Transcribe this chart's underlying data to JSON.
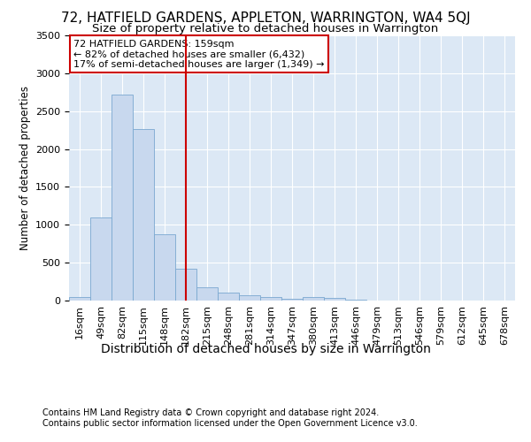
{
  "title1": "72, HATFIELD GARDENS, APPLETON, WARRINGTON, WA4 5QJ",
  "title2": "Size of property relative to detached houses in Warrington",
  "xlabel": "Distribution of detached houses by size in Warrington",
  "ylabel": "Number of detached properties",
  "footnote1": "Contains HM Land Registry data © Crown copyright and database right 2024.",
  "footnote2": "Contains public sector information licensed under the Open Government Licence v3.0.",
  "annotation_title": "72 HATFIELD GARDENS: 159sqm",
  "annotation_line1": "← 82% of detached houses are smaller (6,432)",
  "annotation_line2": "17% of semi-detached houses are larger (1,349) →",
  "bar_labels": [
    "16sqm",
    "49sqm",
    "82sqm",
    "115sqm",
    "148sqm",
    "182sqm",
    "215sqm",
    "248sqm",
    "281sqm",
    "314sqm",
    "347sqm",
    "380sqm",
    "413sqm",
    "446sqm",
    "479sqm",
    "513sqm",
    "546sqm",
    "579sqm",
    "612sqm",
    "645sqm",
    "678sqm"
  ],
  "bar_values": [
    50,
    1100,
    2720,
    2260,
    880,
    420,
    175,
    100,
    65,
    45,
    28,
    50,
    30,
    10,
    5,
    2,
    1,
    1,
    0,
    0,
    0
  ],
  "bar_color": "#c8d8ee",
  "bar_edge_color": "#7aa8d0",
  "vline_color": "#cc0000",
  "vline_x": 5.0,
  "ylim": [
    0,
    3500
  ],
  "yticks": [
    0,
    500,
    1000,
    1500,
    2000,
    2500,
    3000,
    3500
  ],
  "bg_color": "#dce8f5",
  "grid_color": "#ffffff",
  "annotation_box_color": "#ffffff",
  "annotation_box_edge_color": "#cc0000",
  "title1_fontsize": 11,
  "title2_fontsize": 9.5,
  "ylabel_fontsize": 8.5,
  "xlabel_fontsize": 10,
  "tick_fontsize": 8,
  "xtick_fontsize": 8,
  "footnote_fontsize": 7
}
